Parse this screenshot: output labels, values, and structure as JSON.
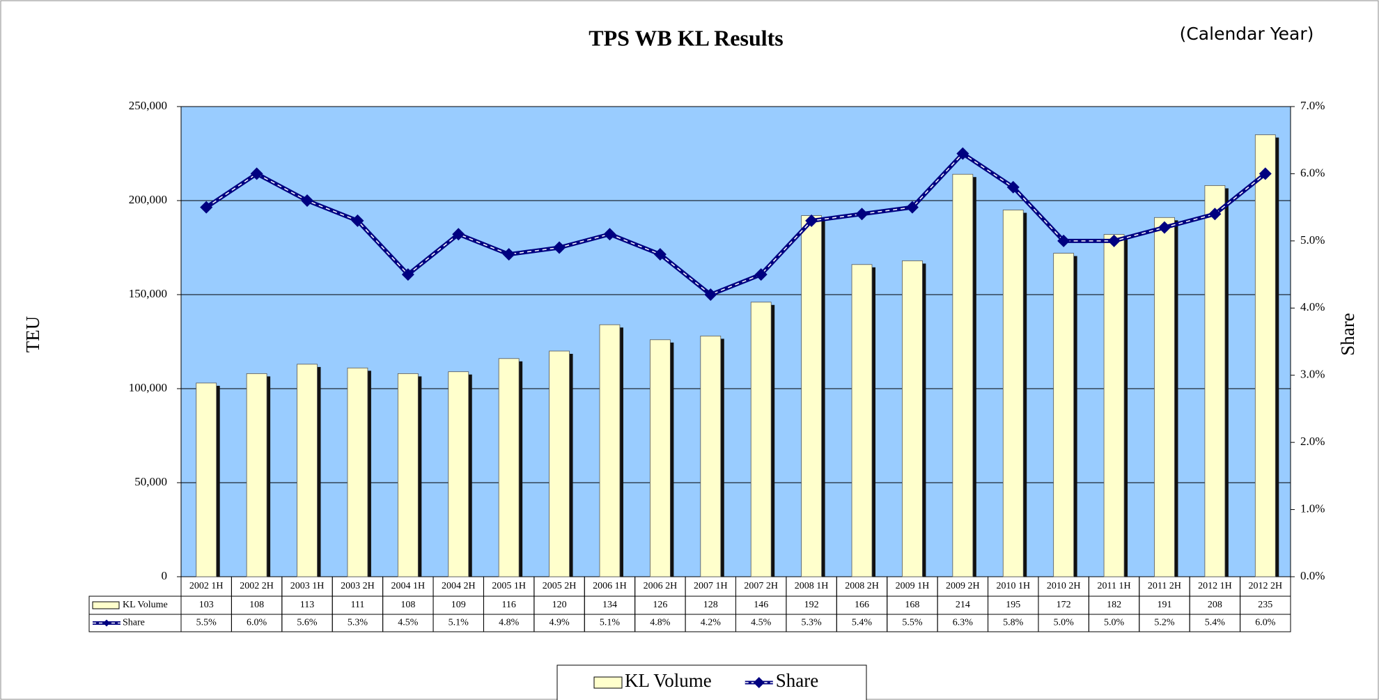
{
  "chart_data": {
    "type": "bar",
    "title": "TPS WB KL Results",
    "subtitle": "(Calendar Year)",
    "ylabel": "TEU",
    "y2label": "Share",
    "categories": [
      "2002 1H",
      "2002 2H",
      "2003 1H",
      "2003 2H",
      "2004 1H",
      "2004 2H",
      "2005 1H",
      "2005 2H",
      "2006 1H",
      "2006 2H",
      "2007 1H",
      "2007 2H",
      "2008 1H",
      "2008 2H",
      "2009 1H",
      "2009 2H",
      "2010 1H",
      "2010 2H",
      "2011 1H",
      "2011 2H",
      "2012 1H",
      "2012 2H"
    ],
    "series": [
      {
        "name": "KL Volume",
        "type": "bar",
        "color": "#ffffcc",
        "values": [
          103000,
          108000,
          113000,
          111000,
          108000,
          109000,
          116000,
          120000,
          134000,
          126000,
          128000,
          146000,
          192000,
          166000,
          168000,
          214000,
          195000,
          172000,
          182000,
          191000,
          208000,
          235000
        ],
        "value_labels": [
          "103",
          "108",
          "113",
          "111",
          "108",
          "109",
          "116",
          "120",
          "134",
          "126",
          "128",
          "146",
          "192",
          "166",
          "168",
          "214",
          "195",
          "172",
          "182",
          "191",
          "208",
          "235"
        ]
      },
      {
        "name": "Share",
        "type": "line",
        "axis": "y2",
        "color": "#000080",
        "values": [
          5.5,
          6.0,
          5.6,
          5.3,
          4.5,
          5.1,
          4.8,
          4.9,
          5.1,
          4.8,
          4.2,
          4.5,
          5.3,
          5.4,
          5.5,
          6.3,
          5.8,
          5.0,
          5.0,
          5.2,
          5.4,
          6.0
        ],
        "value_labels": [
          "5.5%",
          "6.0%",
          "5.6%",
          "5.3%",
          "4.5%",
          "5.1%",
          "4.8%",
          "4.9%",
          "5.1%",
          "4.8%",
          "4.2%",
          "4.5%",
          "5.3%",
          "5.4%",
          "5.5%",
          "6.3%",
          "5.8%",
          "5.0%",
          "5.0%",
          "5.2%",
          "5.4%",
          "6.0%"
        ]
      }
    ],
    "ylim": [
      0,
      250000
    ],
    "yticks": [
      0,
      {
        "value": 50000,
        "label": "50,000"
      },
      {
        "value": 100000,
        "label": "100,000"
      },
      {
        "value": 150000,
        "label": "150,000"
      },
      {
        "value": 200000,
        "label": "200,000"
      },
      {
        "value": 250000,
        "label": "250,000"
      }
    ],
    "y2lim": [
      0,
      7
    ],
    "y2ticks": [
      {
        "value": 0,
        "label": "0.0%"
      },
      {
        "value": 1,
        "label": "1.0%"
      },
      {
        "value": 2,
        "label": "2.0%"
      },
      {
        "value": 3,
        "label": "3.0%"
      },
      {
        "value": 4,
        "label": "4.0%"
      },
      {
        "value": 5,
        "label": "5.0%"
      },
      {
        "value": 6,
        "label": "6.0%"
      },
      {
        "value": 7,
        "label": "7.0%"
      }
    ],
    "grid": true,
    "plot_background": "#99ccff",
    "legend": "bottom"
  }
}
